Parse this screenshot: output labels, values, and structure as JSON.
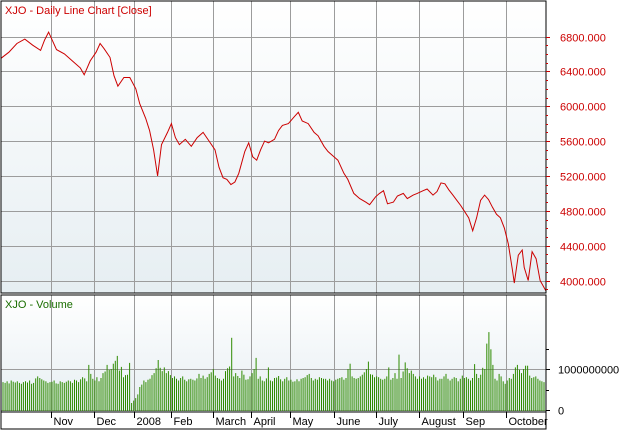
{
  "colors": {
    "price_line": "#cc0000",
    "volume_bar": "#2e8b00",
    "grid": "#9c9c9c",
    "frame": "#000000",
    "panel_bg_top": "#ffffff",
    "panel_bg_bottom": "#e6eef2",
    "price_text": "#cc0000",
    "volume_text": "#1a6e00",
    "date_text": "#000000"
  },
  "chart_data": [
    {
      "type": "line",
      "title": "XJO - Daily Line Chart [Close]",
      "ylim": [
        3880,
        6900
      ],
      "yticks": [
        4000,
        4400,
        4800,
        5200,
        5600,
        6000,
        6400,
        6800
      ],
      "ytick_labels": [
        "4000.000",
        "4400.000",
        "4800.000",
        "5200.000",
        "5600.000",
        "6000.000",
        "6400.000",
        "6800.000"
      ],
      "x_range": [
        0,
        275
      ],
      "grid": true,
      "series": [
        {
          "points": [
            [
              0,
              6550
            ],
            [
              4,
              6620
            ],
            [
              8,
              6720
            ],
            [
              12,
              6770
            ],
            [
              16,
              6700
            ],
            [
              20,
              6640
            ],
            [
              22,
              6760
            ],
            [
              24,
              6850
            ],
            [
              28,
              6650
            ],
            [
              32,
              6600
            ],
            [
              36,
              6520
            ],
            [
              40,
              6440
            ],
            [
              42,
              6360
            ],
            [
              45,
              6520
            ],
            [
              48,
              6620
            ],
            [
              50,
              6720
            ],
            [
              52,
              6660
            ],
            [
              55,
              6560
            ],
            [
              57,
              6350
            ],
            [
              59,
              6230
            ],
            [
              62,
              6330
            ],
            [
              65,
              6330
            ],
            [
              68,
              6200
            ],
            [
              70,
              6030
            ],
            [
              73,
              5860
            ],
            [
              75,
              5720
            ],
            [
              77,
              5500
            ],
            [
              79,
              5200
            ],
            [
              81,
              5560
            ],
            [
              84,
              5700
            ],
            [
              86,
              5800
            ],
            [
              88,
              5640
            ],
            [
              90,
              5560
            ],
            [
              93,
              5620
            ],
            [
              96,
              5540
            ],
            [
              99,
              5640
            ],
            [
              102,
              5700
            ],
            [
              105,
              5600
            ],
            [
              108,
              5500
            ],
            [
              110,
              5300
            ],
            [
              112,
              5180
            ],
            [
              114,
              5160
            ],
            [
              116,
              5100
            ],
            [
              118,
              5130
            ],
            [
              120,
              5230
            ],
            [
              123,
              5480
            ],
            [
              125,
              5580
            ],
            [
              127,
              5420
            ],
            [
              129,
              5380
            ],
            [
              131,
              5500
            ],
            [
              133,
              5600
            ],
            [
              135,
              5580
            ],
            [
              138,
              5620
            ],
            [
              140,
              5720
            ],
            [
              142,
              5780
            ],
            [
              145,
              5800
            ],
            [
              148,
              5880
            ],
            [
              150,
              5930
            ],
            [
              152,
              5830
            ],
            [
              155,
              5800
            ],
            [
              158,
              5700
            ],
            [
              160,
              5660
            ],
            [
              163,
              5540
            ],
            [
              165,
              5480
            ],
            [
              168,
              5420
            ],
            [
              170,
              5380
            ],
            [
              173,
              5230
            ],
            [
              175,
              5160
            ],
            [
              178,
              5000
            ],
            [
              181,
              4940
            ],
            [
              184,
              4900
            ],
            [
              186,
              4870
            ],
            [
              189,
              4960
            ],
            [
              191,
              5000
            ],
            [
              193,
              5030
            ],
            [
              195,
              4880
            ],
            [
              198,
              4900
            ],
            [
              200,
              4970
            ],
            [
              203,
              5000
            ],
            [
              205,
              4940
            ],
            [
              208,
              4980
            ],
            [
              210,
              5000
            ],
            [
              213,
              5030
            ],
            [
              215,
              5050
            ],
            [
              218,
              4980
            ],
            [
              220,
              5020
            ],
            [
              222,
              5120
            ],
            [
              224,
              5110
            ],
            [
              226,
              5040
            ],
            [
              228,
              4980
            ],
            [
              230,
              4920
            ],
            [
              232,
              4860
            ],
            [
              234,
              4790
            ],
            [
              236,
              4720
            ],
            [
              238,
              4570
            ],
            [
              240,
              4720
            ],
            [
              242,
              4920
            ],
            [
              244,
              4980
            ],
            [
              246,
              4930
            ],
            [
              248,
              4840
            ],
            [
              250,
              4760
            ],
            [
              252,
              4720
            ],
            [
              254,
              4600
            ],
            [
              256,
              4420
            ],
            [
              258,
              4130
            ],
            [
              259,
              3970
            ],
            [
              261,
              4290
            ],
            [
              263,
              4350
            ],
            [
              264,
              4150
            ],
            [
              266,
              4000
            ],
            [
              268,
              4330
            ],
            [
              270,
              4250
            ],
            [
              272,
              4000
            ],
            [
              275,
              3880
            ]
          ]
        }
      ]
    },
    {
      "type": "bar",
      "title": "XJO - Volume",
      "ylim": [
        0,
        1900000000
      ],
      "yticks": [
        0,
        1000000000
      ],
      "ytick_labels": [
        "0",
        "1000000000"
      ],
      "grid": true,
      "x_ticks": [
        {
          "x": 25,
          "label": "Nov"
        },
        {
          "x": 47,
          "label": "Dec"
        },
        {
          "x": 67,
          "label": "2008"
        },
        {
          "x": 86,
          "label": "Feb"
        },
        {
          "x": 107,
          "label": "March"
        },
        {
          "x": 126,
          "label": "April"
        },
        {
          "x": 146,
          "label": "May"
        },
        {
          "x": 168,
          "label": "June"
        },
        {
          "x": 189,
          "label": "July"
        },
        {
          "x": 211,
          "label": "August"
        },
        {
          "x": 233,
          "label": "Sep"
        },
        {
          "x": 255,
          "label": "October"
        }
      ],
      "values": [
        680000000,
        660000000,
        700000000,
        650000000,
        720000000,
        690000000,
        670000000,
        700000000,
        660000000,
        640000000,
        680000000,
        700000000,
        670000000,
        720000000,
        640000000,
        660000000,
        770000000,
        820000000,
        780000000,
        750000000,
        720000000,
        700000000,
        660000000,
        680000000,
        690000000,
        720000000,
        650000000,
        640000000,
        700000000,
        680000000,
        660000000,
        690000000,
        720000000,
        700000000,
        660000000,
        740000000,
        720000000,
        680000000,
        750000000,
        800000000,
        770000000,
        700000000,
        1100000000,
        880000000,
        760000000,
        720000000,
        800000000,
        700000000,
        780000000,
        900000000,
        940000000,
        1100000000,
        980000000,
        1000000000,
        1130000000,
        1200000000,
        1320000000,
        960000000,
        1050000000,
        800000000,
        850000000,
        860000000,
        1150000000,
        170000000,
        230000000,
        290000000,
        380000000,
        560000000,
        620000000,
        720000000,
        680000000,
        740000000,
        760000000,
        850000000,
        900000000,
        1020000000,
        1220000000,
        1030000000,
        950000000,
        1040000000,
        900000000,
        950000000,
        850000000,
        780000000,
        820000000,
        760000000,
        720000000,
        780000000,
        820000000,
        740000000,
        700000000,
        750000000,
        760000000,
        740000000,
        720000000,
        770000000,
        880000000,
        780000000,
        840000000,
        760000000,
        800000000,
        880000000,
        920000000,
        1000000000,
        840000000,
        780000000,
        760000000,
        720000000,
        760000000,
        950000000,
        1020000000,
        1060000000,
        1760000000,
        820000000,
        900000000,
        830000000,
        780000000,
        960000000,
        860000000,
        740000000,
        750000000,
        820000000,
        900000000,
        1000000000,
        1270000000,
        760000000,
        820000000,
        720000000,
        700000000,
        770000000,
        1040000000,
        720000000,
        700000000,
        780000000,
        790000000,
        830000000,
        750000000,
        700000000,
        760000000,
        800000000,
        720000000,
        740000000,
        690000000,
        700000000,
        750000000,
        700000000,
        760000000,
        780000000,
        800000000,
        850000000,
        880000000,
        780000000,
        720000000,
        760000000,
        740000000,
        800000000,
        780000000,
        760000000,
        760000000,
        720000000,
        760000000,
        720000000,
        700000000,
        740000000,
        760000000,
        780000000,
        800000000,
        740000000,
        780000000,
        1000000000,
        1130000000,
        820000000,
        780000000,
        760000000,
        780000000,
        820000000,
        860000000,
        920000000,
        1000000000,
        1180000000,
        870000000,
        860000000,
        800000000,
        820000000,
        800000000,
        760000000,
        740000000,
        760000000,
        820000000,
        1040000000,
        740000000,
        780000000,
        900000000,
        760000000,
        1350000000,
        780000000,
        940000000,
        1160000000,
        1020000000,
        900000000,
        960000000,
        880000000,
        820000000,
        760000000,
        820000000,
        760000000,
        800000000,
        760000000,
        840000000,
        820000000,
        800000000,
        860000000,
        800000000,
        720000000,
        760000000,
        760000000,
        820000000,
        880000000,
        760000000,
        720000000,
        760000000,
        800000000,
        780000000,
        700000000,
        760000000,
        840000000,
        780000000,
        800000000,
        760000000,
        720000000,
        780000000,
        1120000000,
        880000000,
        780000000,
        860000000,
        1030000000,
        1000000000,
        1620000000,
        1900000000,
        1480000000,
        1100000000,
        760000000,
        720000000,
        880000000,
        820000000,
        700000000,
        640000000,
        720000000,
        780000000,
        760000000,
        880000000,
        1040000000,
        1100000000,
        980000000,
        900000000,
        1000000000,
        1080000000,
        1080000000,
        840000000,
        780000000,
        800000000,
        820000000,
        760000000,
        720000000,
        700000000,
        680000000
      ]
    }
  ]
}
